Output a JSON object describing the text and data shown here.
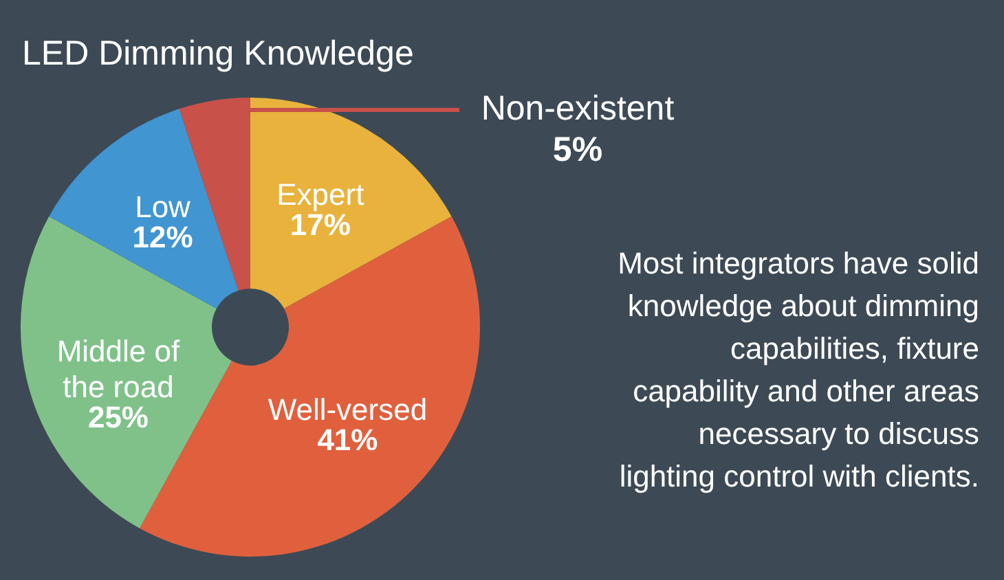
{
  "chart_data": {
    "type": "donut",
    "title": "LED Dimming Knowledge",
    "categories": [
      "Expert",
      "Well-versed",
      "Middle of the road",
      "Low",
      "Non-existent"
    ],
    "values": [
      17,
      41,
      25,
      12,
      5
    ],
    "colors": [
      "#e8b23d",
      "#e0603e",
      "#80c18a",
      "#4195d1",
      "#c8514a"
    ],
    "value_labels": [
      "17%",
      "41%",
      "25%",
      "12%",
      "5%"
    ],
    "annotations": [
      "Most integrators have solid knowledge about dimming capabilities, fixture capability and other areas necessary to discuss lighting control with clients."
    ]
  }
}
